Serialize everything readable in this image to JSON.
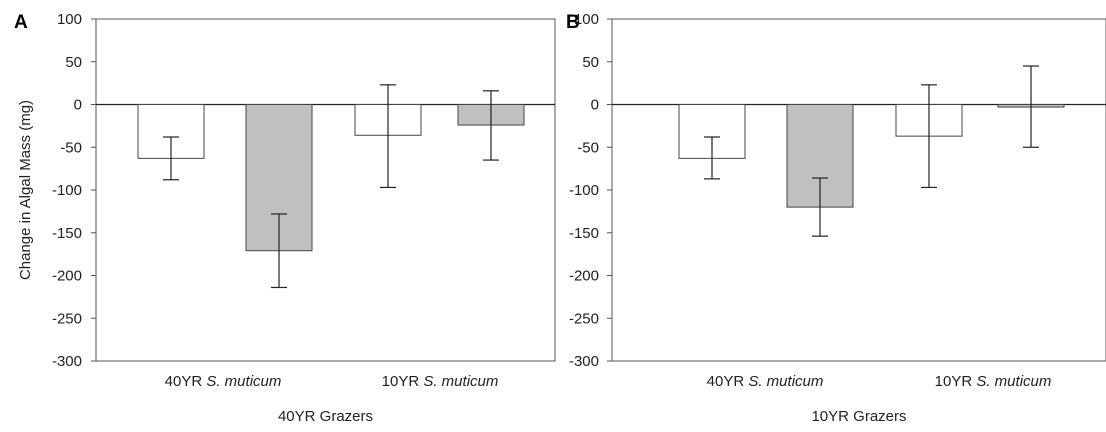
{
  "chart_data": [
    {
      "type": "bar",
      "panel_label": "A",
      "xlabel": "40YR Grazers",
      "ylabel": "Change in Algal Mass (mg)",
      "ylim": [
        -300,
        100
      ],
      "yticks": [
        100,
        50,
        0,
        -50,
        -100,
        -150,
        -200,
        -250,
        -300
      ],
      "groups": [
        {
          "prefix": "40YR ",
          "species": "S. muticum"
        },
        {
          "prefix": "10YR ",
          "species": "S. muticum"
        }
      ],
      "bars": [
        {
          "group": 0,
          "fill": "#ffffff",
          "value": -63,
          "err_low": -88,
          "err_high": -38
        },
        {
          "group": 0,
          "fill": "#c0c0c0",
          "value": -171,
          "err_low": -214,
          "err_high": -128
        },
        {
          "group": 1,
          "fill": "#ffffff",
          "value": -36,
          "err_low": -97,
          "err_high": 23
        },
        {
          "group": 1,
          "fill": "#c0c0c0",
          "value": -24,
          "err_low": -65,
          "err_high": 16
        }
      ]
    },
    {
      "type": "bar",
      "panel_label": "B",
      "xlabel": "10YR Grazers",
      "ylabel": "",
      "ylim": [
        -300,
        100
      ],
      "yticks": [
        100,
        50,
        0,
        -50,
        -100,
        -150,
        -200,
        -250,
        -300
      ],
      "groups": [
        {
          "prefix": "40YR ",
          "species": "S. muticum"
        },
        {
          "prefix": "10YR ",
          "species": "S. muticum"
        }
      ],
      "bars": [
        {
          "group": 0,
          "fill": "#ffffff",
          "value": -63,
          "err_low": -87,
          "err_high": -38
        },
        {
          "group": 0,
          "fill": "#c0c0c0",
          "value": -120,
          "err_low": -154,
          "err_high": -86
        },
        {
          "group": 1,
          "fill": "#ffffff",
          "value": -37,
          "err_low": -97,
          "err_high": 23
        },
        {
          "group": 1,
          "fill": "#c0c0c0",
          "value": -3,
          "err_low": -50,
          "err_high": 45
        }
      ]
    }
  ]
}
